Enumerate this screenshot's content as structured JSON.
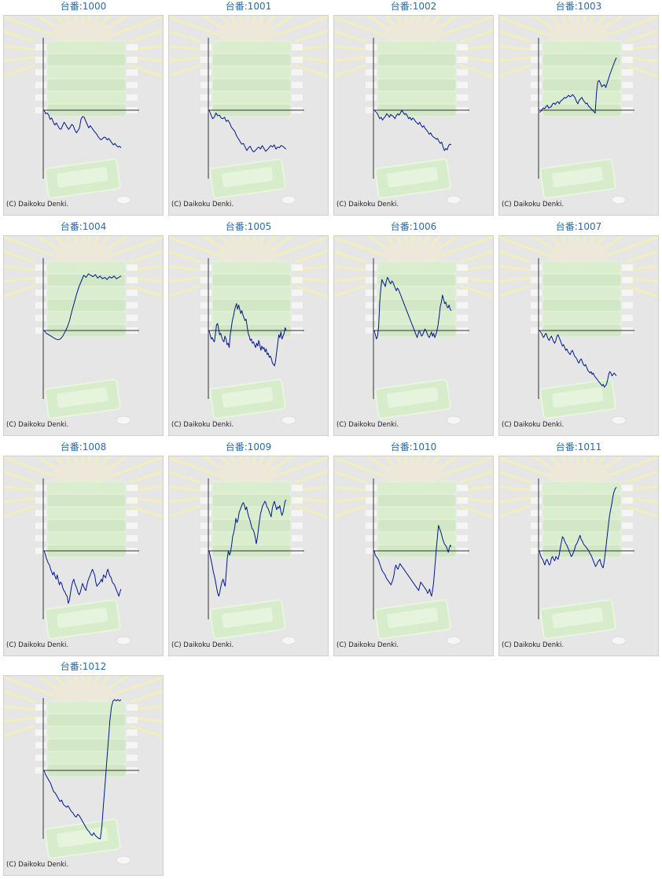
{
  "copyright": "(C) Daikoku Denki.",
  "line_color": "#00188f",
  "title_color": "#2a6aa8",
  "chart_data": [
    {
      "type": "line",
      "title": "台番:1000",
      "trend": "down",
      "seed": 11,
      "y": [
        0,
        -5,
        -4,
        -7,
        -13,
        -11,
        -17,
        -21,
        -18,
        -22,
        -26,
        -27,
        -22,
        -17,
        -20,
        -24,
        -27,
        -24,
        -20,
        -22,
        -28,
        -32,
        -29,
        -25,
        -13,
        -9,
        -10,
        -15,
        -20,
        -25,
        -22,
        -25,
        -28,
        -31,
        -33,
        -37,
        -40,
        -42,
        -40,
        -38,
        -39,
        -42,
        -40,
        -43,
        -46,
        -49,
        -47,
        -50,
        -52,
        -51,
        -53
      ]
    },
    {
      "type": "line",
      "title": "台番:1001",
      "trend": "down",
      "seed": 22,
      "y": [
        0,
        -6,
        -12,
        -10,
        -4,
        -8,
        -7,
        -11,
        -12,
        -10,
        -16,
        -14,
        -18,
        -24,
        -27,
        -30,
        -36,
        -40,
        -44,
        -48,
        -47,
        -52,
        -57,
        -53,
        -51,
        -56,
        -59,
        -57,
        -54,
        -52,
        -55,
        -50,
        -54,
        -58,
        -56,
        -53,
        -50,
        -52,
        -49,
        -55,
        -52,
        -53,
        -50,
        -51,
        -53,
        -55
      ]
    },
    {
      "type": "line",
      "title": "台番:1002",
      "trend": "down",
      "seed": 33,
      "y": [
        0,
        -2,
        -4,
        -8,
        -12,
        -10,
        -14,
        -11,
        -9,
        -5,
        -7,
        -10,
        -6,
        -8,
        -9,
        -12,
        -8,
        -5,
        -7,
        -4,
        0,
        -3,
        -6,
        -5,
        -8,
        -12,
        -10,
        -14,
        -11,
        -13,
        -16,
        -18,
        -20,
        -17,
        -21,
        -24,
        -22,
        -26,
        -28,
        -31,
        -34,
        -32,
        -36,
        -38,
        -39,
        -41,
        -40,
        -44,
        -47,
        -45,
        -52,
        -57,
        -54,
        -56,
        -50,
        -48,
        -49
      ]
    },
    {
      "type": "line",
      "title": "台番:1003",
      "trend": "up",
      "seed": 44,
      "y": [
        -3,
        -2,
        1,
        3,
        2,
        5,
        7,
        3,
        4,
        5,
        9,
        10,
        8,
        11,
        12,
        9,
        13,
        14,
        16,
        18,
        17,
        19,
        21,
        19,
        20,
        22,
        20,
        17,
        12,
        9,
        14,
        16,
        18,
        14,
        12,
        9,
        10,
        6,
        4,
        2,
        0,
        -2,
        -4,
        25,
        40,
        42,
        38,
        33,
        35,
        36,
        32,
        38,
        44,
        50,
        55,
        60,
        65,
        70,
        74
      ]
    },
    {
      "type": "line",
      "title": "台番:1004",
      "trend": "up",
      "seed": 55,
      "y": [
        0,
        -4,
        -6,
        -8,
        -10,
        -12,
        -13,
        -12,
        -8,
        -2,
        5,
        15,
        28,
        40,
        52,
        62,
        70,
        78,
        75,
        80,
        78,
        76,
        79,
        74,
        77,
        73,
        75,
        72,
        76,
        74,
        77,
        73,
        75,
        77
      ]
    },
    {
      "type": "line",
      "title": "台番:1005",
      "trend": "mixed",
      "seed": 66,
      "y": [
        0,
        -6,
        -12,
        -10,
        -14,
        -16,
        -4,
        8,
        10,
        2,
        -6,
        -4,
        -10,
        -14,
        -16,
        -8,
        -12,
        -20,
        -18,
        -24,
        -6,
        4,
        14,
        20,
        28,
        34,
        38,
        30,
        36,
        30,
        24,
        28,
        22,
        18,
        14,
        16,
        6,
        -4,
        -8,
        -14,
        -12,
        -18,
        -16,
        -20,
        -24,
        -18,
        -22,
        -14,
        -20,
        -28,
        -22,
        -26,
        -24,
        -30,
        -26,
        -34,
        -32,
        -38,
        -36,
        -40,
        -46,
        -48,
        -50,
        -42,
        -30,
        -18,
        -6,
        -10,
        -2,
        -12,
        -8,
        -4,
        4,
        0
      ]
    },
    {
      "type": "line",
      "title": "台番:1006",
      "trend": "mixed",
      "seed": 77,
      "y": [
        0,
        -6,
        -12,
        -8,
        6,
        40,
        60,
        72,
        68,
        66,
        62,
        70,
        75,
        72,
        68,
        66,
        70,
        68,
        64,
        60,
        56,
        60,
        58,
        54,
        50,
        46,
        42,
        38,
        34,
        30,
        26,
        22,
        18,
        14,
        10,
        6,
        2,
        -2,
        -6,
        -10,
        -4,
        0,
        -4,
        -8,
        -6,
        -2,
        2,
        0,
        -4,
        -8,
        -10,
        -6,
        -2,
        -8,
        -4,
        -10,
        -6,
        0,
        8,
        20,
        34,
        40,
        50,
        44,
        38,
        40,
        34,
        32,
        36,
        30,
        28
      ]
    },
    {
      "type": "line",
      "title": "台番:1007",
      "trend": "down",
      "seed": 88,
      "y": [
        0,
        -2,
        -4,
        -8,
        -10,
        -6,
        -4,
        -8,
        -12,
        -14,
        -10,
        -8,
        -12,
        -16,
        -18,
        -14,
        -8,
        -6,
        -10,
        -14,
        -18,
        -22,
        -20,
        -24,
        -28,
        -26,
        -30,
        -32,
        -34,
        -30,
        -28,
        -32,
        -36,
        -38,
        -40,
        -44,
        -46,
        -42,
        -40,
        -44,
        -48,
        -50,
        -48,
        -52,
        -56,
        -58,
        -60,
        -58,
        -62,
        -60,
        -64,
        -66,
        -68,
        -70,
        -72,
        -74,
        -76,
        -78,
        -76,
        -80,
        -78,
        -76,
        -70,
        -62,
        -58,
        -60,
        -64,
        -62,
        -60,
        -62,
        -64
      ]
    },
    {
      "type": "line",
      "title": "台番:1008",
      "trend": "down",
      "seed": 99,
      "y": [
        0,
        -4,
        -10,
        -14,
        -18,
        -20,
        -26,
        -30,
        -34,
        -30,
        -36,
        -40,
        -34,
        -42,
        -48,
        -44,
        -46,
        -52,
        -56,
        -58,
        -62,
        -64,
        -74,
        -70,
        -60,
        -50,
        -44,
        -40,
        -46,
        -50,
        -54,
        -60,
        -62,
        -58,
        -52,
        -46,
        -50,
        -54,
        -56,
        -48,
        -42,
        -38,
        -34,
        -30,
        -26,
        -30,
        -34,
        -44,
        -50,
        -48,
        -46,
        -44,
        -40,
        -44,
        -34,
        -36,
        -38,
        -30,
        -26,
        -32,
        -36,
        -38,
        -44,
        -46,
        -48,
        -52,
        -56,
        -60,
        -64,
        -58,
        -54
      ]
    },
    {
      "type": "line",
      "title": "台番:1009",
      "trend": "up",
      "seed": 111,
      "y": [
        0,
        -8,
        -14,
        -22,
        -30,
        -36,
        -44,
        -52,
        -60,
        -64,
        -58,
        -50,
        -44,
        -40,
        -46,
        -50,
        -30,
        -10,
        0,
        -6,
        -2,
        8,
        20,
        26,
        34,
        46,
        40,
        44,
        54,
        58,
        62,
        66,
        68,
        64,
        58,
        62,
        54,
        48,
        44,
        38,
        32,
        30,
        26,
        20,
        10,
        18,
        30,
        42,
        52,
        58,
        64,
        66,
        70,
        68,
        62,
        60,
        56,
        52,
        48,
        60,
        66,
        70,
        64,
        58,
        62,
        60,
        64,
        56,
        50,
        54,
        62,
        70,
        72
      ]
    },
    {
      "type": "line",
      "title": "台番:1010",
      "trend": "mixed",
      "seed": 122,
      "y": [
        0,
        -6,
        -8,
        -10,
        -12,
        -16,
        -20,
        -24,
        -28,
        -30,
        -32,
        -34,
        -38,
        -40,
        -42,
        -44,
        -46,
        -48,
        -44,
        -40,
        -34,
        -24,
        -20,
        -24,
        -26,
        -22,
        -18,
        -20,
        -22,
        -24,
        -26,
        -28,
        -30,
        -32,
        -34,
        -36,
        -38,
        -40,
        -42,
        -44,
        -46,
        -48,
        -50,
        -52,
        -54,
        -56,
        -50,
        -44,
        -46,
        -48,
        -50,
        -52,
        -54,
        -56,
        -60,
        -58,
        -54,
        -60,
        -64,
        -56,
        -46,
        -30,
        -12,
        6,
        20,
        36,
        32,
        28,
        24,
        18,
        14,
        10,
        8,
        6,
        2,
        -2,
        4,
        8,
        6
      ]
    },
    {
      "type": "line",
      "title": "台番:1011",
      "trend": "up",
      "seed": 133,
      "y": [
        0,
        -6,
        -10,
        -12,
        -16,
        -20,
        -14,
        -12,
        -16,
        -20,
        -18,
        -10,
        -8,
        -12,
        -14,
        -8,
        -10,
        -12,
        -6,
        4,
        12,
        20,
        18,
        14,
        10,
        8,
        4,
        0,
        -4,
        -8,
        -6,
        -2,
        2,
        8,
        10,
        14,
        18,
        22,
        16,
        14,
        10,
        8,
        6,
        4,
        2,
        0,
        -4,
        -6,
        -10,
        -14,
        -18,
        -22,
        -20,
        -16,
        -14,
        -12,
        -18,
        -22,
        -24,
        -14,
        -2,
        12,
        26,
        40,
        52,
        60,
        68,
        78,
        84,
        88,
        90
      ]
    },
    {
      "type": "line",
      "title": "台番:1012",
      "trend": "up",
      "seed": 144,
      "y": [
        0,
        -6,
        -10,
        -14,
        -18,
        -24,
        -30,
        -32,
        -36,
        -40,
        -44,
        -42,
        -48,
        -50,
        -52,
        -50,
        -54,
        -58,
        -60,
        -64,
        -66,
        -62,
        -64,
        -68,
        -72,
        -76,
        -80,
        -84,
        -86,
        -90,
        -92,
        -88,
        -92,
        -94,
        -96,
        -98,
        -80,
        -50,
        -20,
        10,
        40,
        70,
        90,
        98,
        100,
        98,
        100,
        98,
        100
      ]
    }
  ]
}
